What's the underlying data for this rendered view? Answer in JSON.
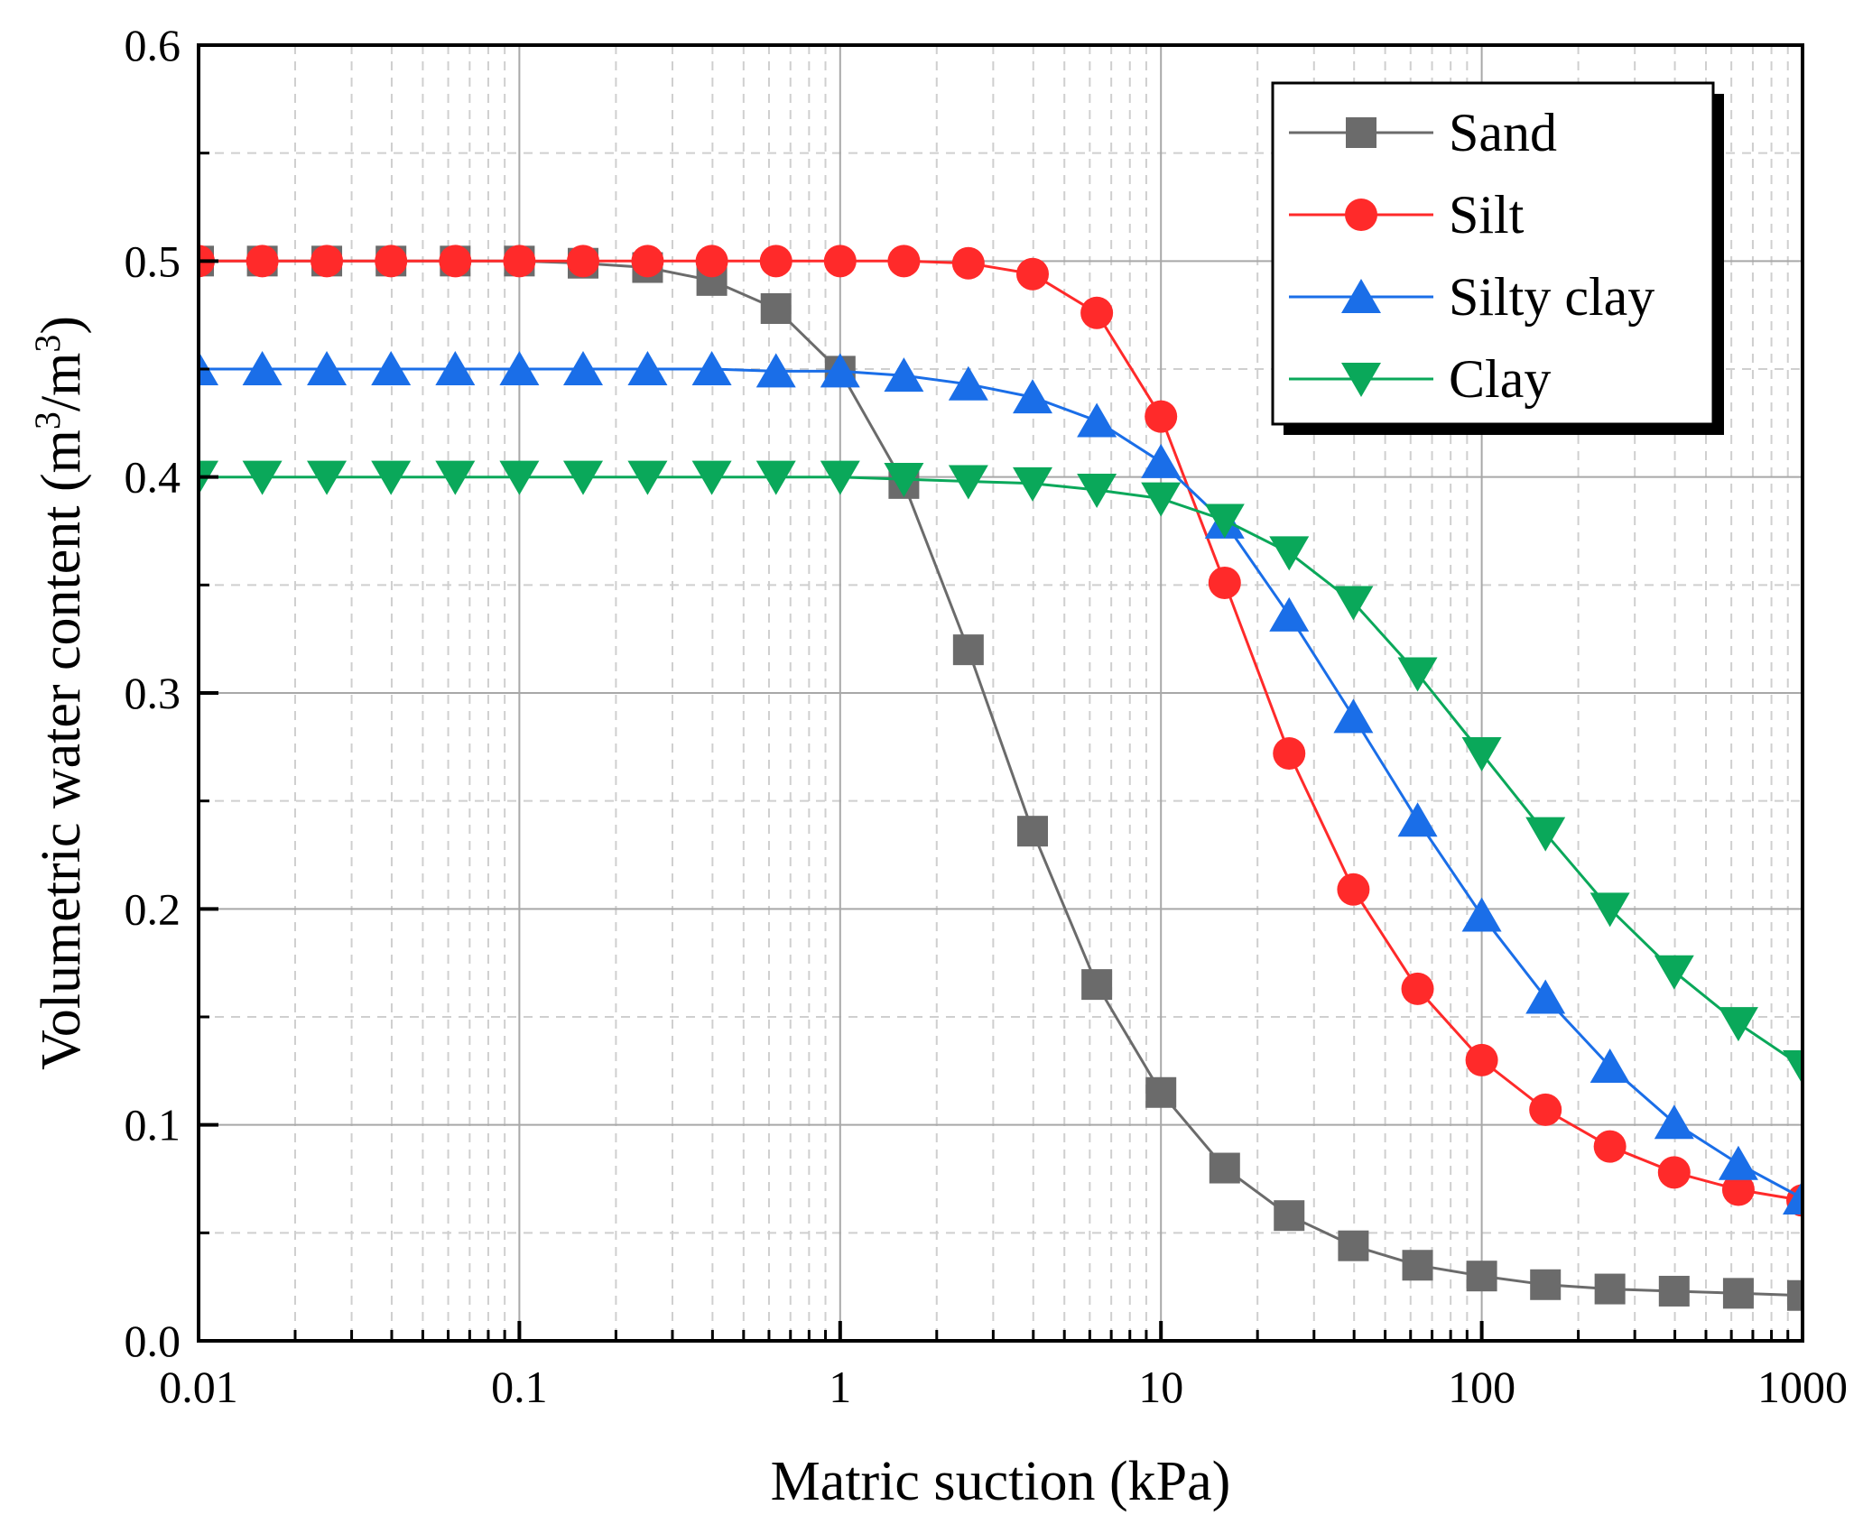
{
  "chart_data": {
    "type": "line",
    "xlabel": "Matric suction (kPa)",
    "ylabel": "Volumetric water content (m³/m³)",
    "ylabel_parts": {
      "main": "Volumetric water content (m",
      "sup1": "3",
      "mid": "/m",
      "sup2": "3",
      "end": ")"
    },
    "x_scale": "log",
    "xlim": [
      0.01,
      1000
    ],
    "ylim": [
      0.0,
      0.6
    ],
    "x_ticks": [
      {
        "value": 0.01,
        "label": "0.01"
      },
      {
        "value": 0.1,
        "label": "0.1"
      },
      {
        "value": 1,
        "label": "1"
      },
      {
        "value": 10,
        "label": "10"
      },
      {
        "value": 100,
        "label": "100"
      },
      {
        "value": 1000,
        "label": "1000"
      }
    ],
    "y_ticks": [
      {
        "value": 0.0,
        "label": "0.0"
      },
      {
        "value": 0.1,
        "label": "0.1"
      },
      {
        "value": 0.2,
        "label": "0.2"
      },
      {
        "value": 0.3,
        "label": "0.3"
      },
      {
        "value": 0.4,
        "label": "0.4"
      },
      {
        "value": 0.5,
        "label": "0.5"
      },
      {
        "value": 0.6,
        "label": "0.6"
      }
    ],
    "grid": true,
    "legend": {
      "position": "top-right"
    },
    "x": [
      0.01,
      0.0158,
      0.0251,
      0.0398,
      0.0631,
      0.1,
      0.158,
      0.251,
      0.398,
      0.631,
      1,
      1.58,
      2.51,
      3.98,
      6.31,
      10,
      15.8,
      25.1,
      39.8,
      63.1,
      100,
      158,
      251,
      398,
      631,
      1000
    ],
    "series": [
      {
        "name": "Sand",
        "color": "#6b6b6b",
        "marker": "square",
        "values": [
          0.5,
          0.5,
          0.5,
          0.5,
          0.5,
          0.5,
          0.499,
          0.497,
          0.491,
          0.478,
          0.449,
          0.397,
          0.32,
          0.236,
          0.165,
          0.115,
          0.08,
          0.058,
          0.044,
          0.035,
          0.03,
          0.026,
          0.024,
          0.023,
          0.022,
          0.021
        ]
      },
      {
        "name": "Silt",
        "color": "#ff2a2a",
        "marker": "circle",
        "values": [
          0.5,
          0.5,
          0.5,
          0.5,
          0.5,
          0.5,
          0.5,
          0.5,
          0.5,
          0.5,
          0.5,
          0.5,
          0.499,
          0.494,
          0.476,
          0.428,
          0.351,
          0.272,
          0.209,
          0.163,
          0.13,
          0.107,
          0.09,
          0.078,
          0.07,
          0.065
        ]
      },
      {
        "name": "Silty clay",
        "color": "#1a6ee8",
        "marker": "triangle-up",
        "values": [
          0.45,
          0.45,
          0.45,
          0.45,
          0.45,
          0.45,
          0.45,
          0.45,
          0.45,
          0.449,
          0.449,
          0.447,
          0.443,
          0.437,
          0.426,
          0.407,
          0.379,
          0.336,
          0.289,
          0.241,
          0.197,
          0.159,
          0.127,
          0.101,
          0.082,
          0.066
        ]
      },
      {
        "name": "Clay",
        "color": "#0aa85a",
        "marker": "triangle-down",
        "values": [
          0.4,
          0.4,
          0.4,
          0.4,
          0.4,
          0.4,
          0.4,
          0.4,
          0.4,
          0.4,
          0.4,
          0.399,
          0.398,
          0.397,
          0.394,
          0.39,
          0.38,
          0.365,
          0.342,
          0.309,
          0.272,
          0.235,
          0.2,
          0.171,
          0.147,
          0.127
        ]
      }
    ]
  }
}
